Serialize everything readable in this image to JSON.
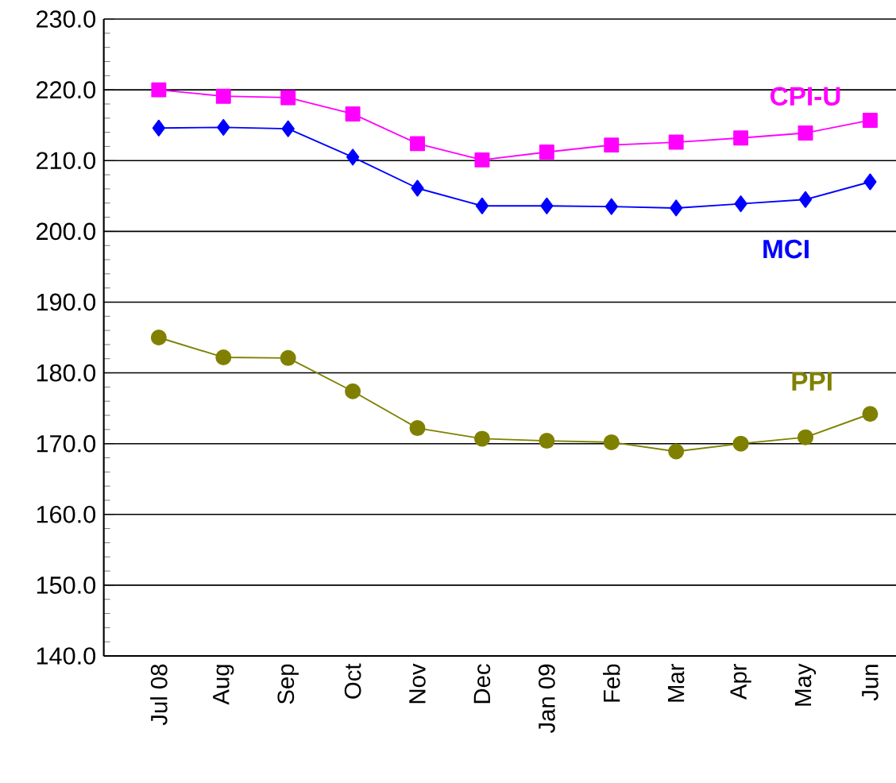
{
  "chart_data": {
    "type": "line",
    "categories": [
      "Jul 08",
      "Aug",
      "Sep",
      "Oct",
      "Nov",
      "Dec",
      "Jan 09",
      "Feb",
      "Mar",
      "Apr",
      "May",
      "Jun"
    ],
    "series": [
      {
        "name": "CPI-U",
        "color": "#ff00ff",
        "marker": "square",
        "values": [
          220.0,
          219.1,
          218.9,
          216.6,
          212.4,
          210.1,
          211.2,
          212.2,
          212.6,
          213.2,
          213.9,
          215.7
        ]
      },
      {
        "name": "MCI",
        "color": "#0000ff",
        "marker": "diamond",
        "values": [
          214.6,
          214.7,
          214.5,
          210.5,
          206.1,
          203.6,
          203.6,
          203.5,
          203.3,
          203.9,
          204.5,
          207.0
        ]
      },
      {
        "name": "PPI",
        "color": "#808000",
        "marker": "circle",
        "values": [
          185.0,
          182.2,
          182.1,
          177.4,
          172.2,
          170.7,
          170.4,
          170.2,
          168.9,
          170.0,
          170.9,
          174.2
        ]
      }
    ],
    "ylim": [
      140,
      230
    ],
    "yticks": [
      {
        "value": 140,
        "label": "140.0"
      },
      {
        "value": 150,
        "label": "150.0"
      },
      {
        "value": 160,
        "label": "160.0"
      },
      {
        "value": 170,
        "label": "170.0"
      },
      {
        "value": 180,
        "label": "180.0"
      },
      {
        "value": 190,
        "label": "190.0"
      },
      {
        "value": 200,
        "label": "200.0"
      },
      {
        "value": 210,
        "label": "210.0"
      },
      {
        "value": 220,
        "label": "220.0"
      },
      {
        "value": 230,
        "label": "230.0"
      }
    ],
    "grid": "y"
  }
}
